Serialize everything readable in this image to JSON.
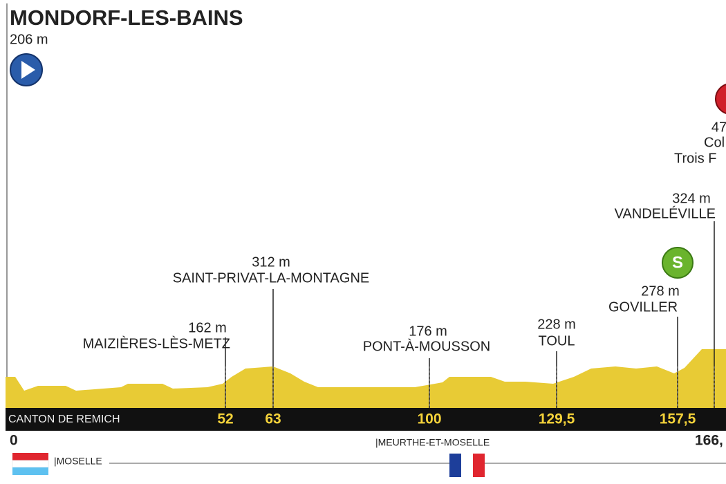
{
  "header": {
    "title": "MONDORF-LES-BAINS",
    "altitude": "206 m"
  },
  "waypoints": [
    {
      "altitude": "162 m",
      "name": "MAIZIÈRES-LÈS-METZ",
      "km": "52"
    },
    {
      "altitude": "312 m",
      "name": "SAINT-PRIVAT-LA-MONTAGNE",
      "km": "63"
    },
    {
      "altitude": "176 m",
      "name": "PONT-À-MOUSSON",
      "km": "100"
    },
    {
      "altitude": "228 m",
      "name": "TOUL",
      "km": "129,5"
    },
    {
      "altitude": "278 m",
      "name": "GOVILLER",
      "km": "157,5"
    },
    {
      "altitude": "324 m",
      "name": "VANDELÉVILLE"
    }
  ],
  "climb": {
    "altitude": "47",
    "name_lines": [
      "Col",
      "Trois F"
    ]
  },
  "sprint_icon": "S",
  "bar": {
    "start_place": "CANTON DE REMICH"
  },
  "footer": {
    "start_km": "0",
    "end_km": "166,",
    "region_right": "|MEURTHE-ET-MOSELLE",
    "region_left": "|MOSELLE"
  }
}
